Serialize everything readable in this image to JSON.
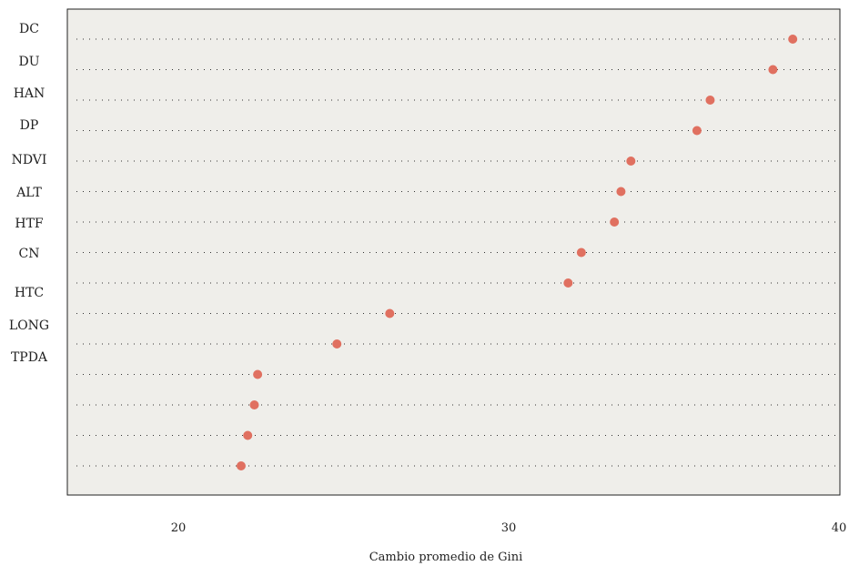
{
  "chart_data": {
    "type": "scatter",
    "xlabel": "Cambio promedio de Gini",
    "xlim": [
      16.6,
      40
    ],
    "xticks": [
      20,
      30,
      40
    ],
    "categories": [
      "DC",
      "DU",
      "HAN",
      "DP",
      "NDVI",
      "ALT",
      "HTF",
      "CN",
      "HTC",
      "LONG",
      "TPDA",
      "",
      "",
      "",
      ""
    ],
    "values": [
      38.6,
      38.0,
      36.1,
      35.7,
      33.7,
      33.4,
      33.2,
      32.2,
      31.8,
      26.4,
      24.8,
      22.4,
      22.3,
      22.1,
      21.9
    ],
    "point_color": "#e07060",
    "panel_color": "#efeeea",
    "grid": "dotted horizontal lines"
  }
}
